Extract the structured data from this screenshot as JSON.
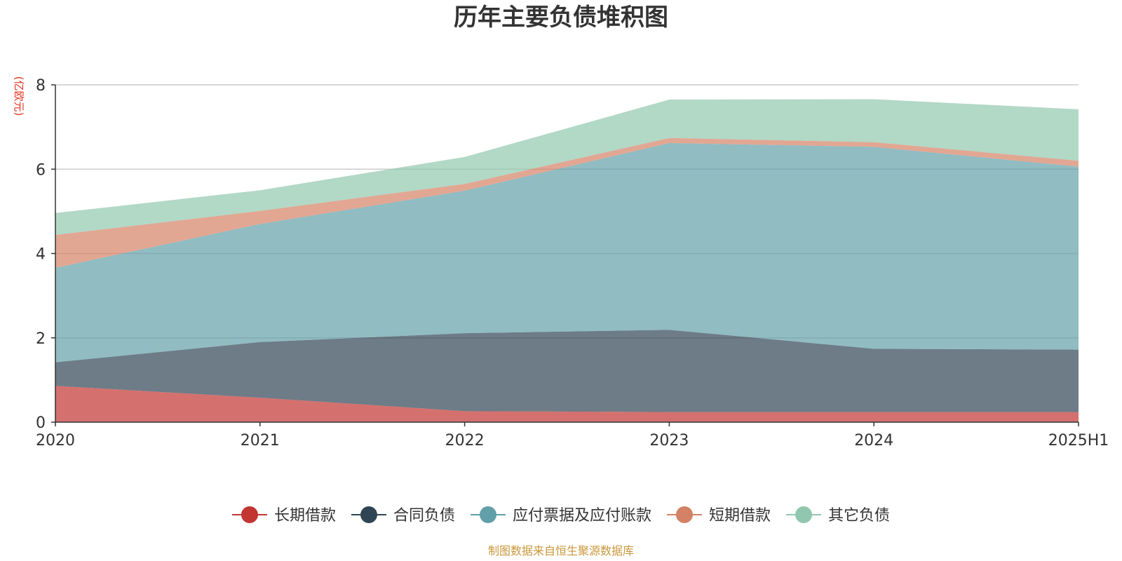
{
  "chart_data": {
    "type": "area",
    "stacked": true,
    "title": "历年主要负债堆积图",
    "unit_label": "(亿欧元)",
    "categories": [
      "2020",
      "2021",
      "2022",
      "2023",
      "2024",
      "2025H1"
    ],
    "ylim": [
      0,
      8
    ],
    "yticks": [
      "0",
      "2",
      "4",
      "6",
      "8"
    ],
    "grid": true,
    "legend_position": "bottom",
    "series": [
      {
        "name": "长期借款",
        "color": "#c23531",
        "values": [
          0.86,
          0.58,
          0.26,
          0.24,
          0.24,
          0.24
        ]
      },
      {
        "name": "合同负债",
        "color": "#2f4554",
        "values": [
          0.56,
          1.32,
          1.85,
          1.95,
          1.5,
          1.48
        ]
      },
      {
        "name": "应付票据及应付账款",
        "color": "#61a0a8",
        "values": [
          2.24,
          2.8,
          3.38,
          4.43,
          4.79,
          4.34
        ]
      },
      {
        "name": "短期借款",
        "color": "#d48265",
        "values": [
          0.78,
          0.31,
          0.16,
          0.12,
          0.11,
          0.14
        ]
      },
      {
        "name": "其它负债",
        "color": "#91c7ae",
        "values": [
          0.52,
          0.49,
          0.64,
          0.91,
          1.02,
          1.22
        ]
      }
    ],
    "source": "制图数据来自恒生聚源数据库"
  }
}
